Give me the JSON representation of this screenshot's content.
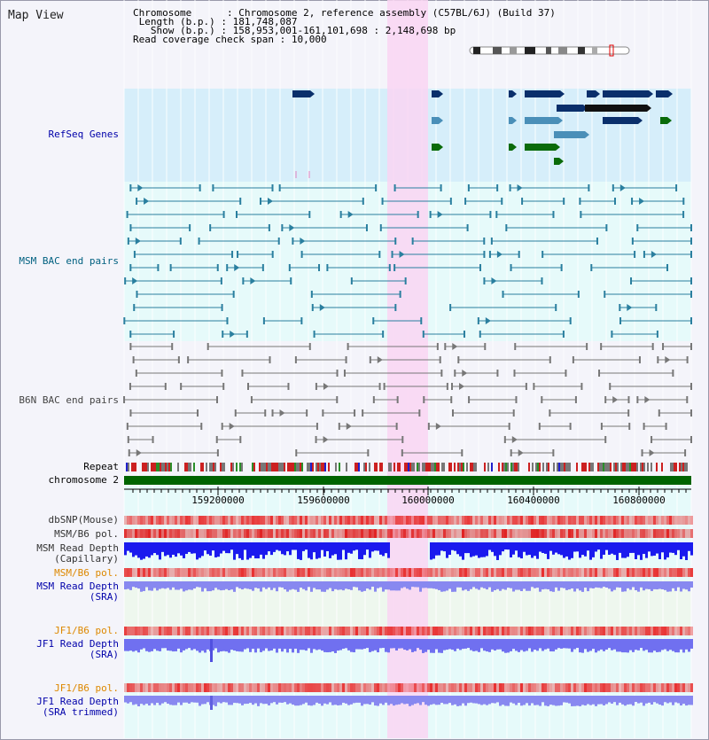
{
  "header": {
    "title": "Map View",
    "chromosome_key": "Chromosome",
    "chromosome_value": "Chromosome 2, reference assembly (C57BL/6J) (Build 37)",
    "length_key": "Length (b.p.)",
    "length_value": "181,748,087",
    "show_key": "Show (b.p.)",
    "show_value": "158,953,001-161,101,698 : 2,148,698 bp",
    "coverage_key": "Read coverage check span",
    "coverage_value": "10,000"
  },
  "tracks": {
    "refseq": "RefSeq Genes",
    "msm_bac": "MSM BAC end pairs",
    "b6n_bac": "B6N BAC end pairs",
    "repeat": "Repeat",
    "chromosome": "chromosome 2",
    "dbsnp": "dbSNP(Mouse)",
    "msm_b6_pol": "MSM/B6 pol.",
    "msm_depth_cap_1": "MSM Read Depth",
    "msm_depth_cap_2": "(Capillary)",
    "msm_b6_pol_2": "MSM/B6 pol.",
    "msm_depth_sra_1": "MSM Read Depth",
    "msm_depth_sra_2": "(SRA)",
    "jf1_pol": "JF1/B6 pol.",
    "jf1_depth_1": "JF1 Read Depth",
    "jf1_depth_2": "(SRA)",
    "jf1_pol_2": "JF1/B6 pol.",
    "jf1_trim_1": "JF1 Read Depth",
    "jf1_trim_2": "(SRA trimmed)"
  },
  "axis": {
    "ticks": [
      "159200000",
      "159600000",
      "160000000",
      "160400000",
      "160800000"
    ]
  },
  "colors": {
    "background": "#f4f4fa",
    "highlight": "#f9d5f2",
    "refseq_band": "#d6eefa",
    "bac_band": "#e6fafa",
    "gene_dark": "#0a2f6b",
    "gene_mid": "#4a8fb8",
    "gene_green": "#0a6b0a",
    "chromosome_bar": "#006400",
    "label_blue": "#0000aa",
    "label_orange": "#dd8800",
    "label_gray": "#333333"
  }
}
